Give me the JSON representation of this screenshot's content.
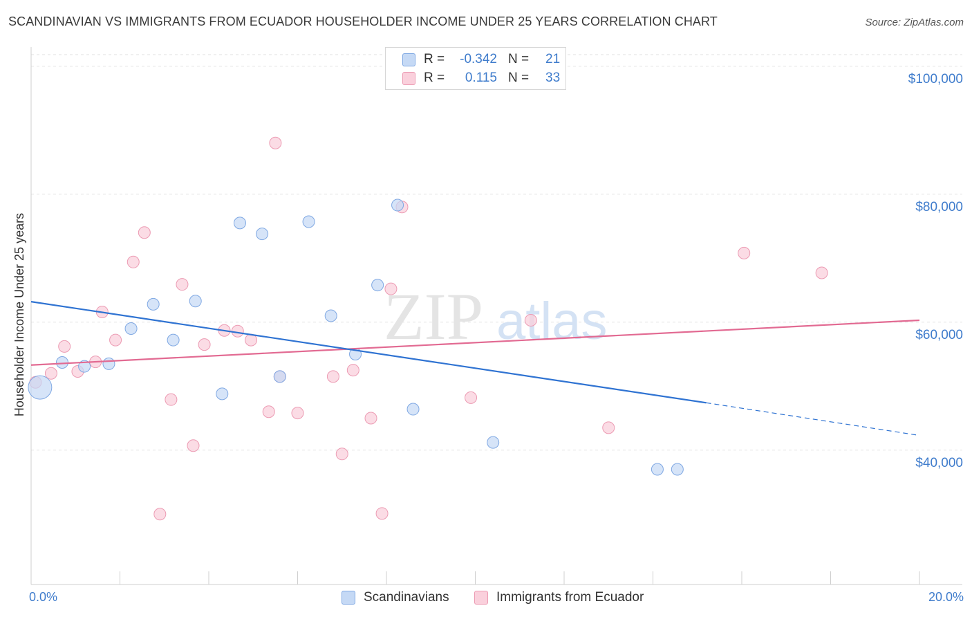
{
  "header": {
    "title": "SCANDINAVIAN VS IMMIGRANTS FROM ECUADOR HOUSEHOLDER INCOME UNDER 25 YEARS CORRELATION CHART",
    "source": "Source: ZipAtlas.com"
  },
  "watermark": {
    "zip": "ZIP",
    "atlas": "atlas"
  },
  "legend_top": [
    {
      "r_label": "R =",
      "r_value": "-0.342",
      "n_label": "N =",
      "n_value": "21"
    },
    {
      "r_label": "R =",
      "r_value": "0.115",
      "n_label": "N =",
      "n_value": "33"
    }
  ],
  "legend_bottom": [
    "Scandinavians",
    "Immigrants from Ecuador"
  ],
  "colors": {
    "scandinavians_fill": "#c5d9f5",
    "scandinavians_stroke": "#7fa8e3",
    "scandinavians_line": "#2f73d2",
    "ecuador_fill": "#fad0dc",
    "ecuador_stroke": "#ec9bb3",
    "ecuador_line": "#e26a92",
    "axis_text": "#3f7ccc"
  },
  "chart_data": {
    "type": "scatter",
    "title": "SCANDINAVIAN VS IMMIGRANTS FROM ECUADOR HOUSEHOLDER INCOME UNDER 25 YEARS CORRELATION CHART",
    "xlabel": "",
    "ylabel": "Householder Income Under 25 years",
    "xlim": [
      0,
      20
    ],
    "ylim": [
      19000,
      103000
    ],
    "x_tick_labels": [
      "0.0%",
      "20.0%"
    ],
    "y_ticks": [
      40000,
      60000,
      80000,
      100000
    ],
    "y_tick_labels": [
      "$40,000",
      "$60,000",
      "$80,000",
      "$100,000"
    ],
    "grid": true,
    "legend_position": "top-center",
    "series": [
      {
        "name": "Scandinavians",
        "r": -0.342,
        "n": 21,
        "trend": {
          "x0": 0,
          "y0": 63200,
          "x1": 15.2,
          "y1": 47400,
          "dash_to_x": 20,
          "dash_to_y": 42300
        },
        "points": [
          {
            "x": 0.2,
            "y": 49800,
            "size": "large"
          },
          {
            "x": 0.7,
            "y": 53700
          },
          {
            "x": 1.2,
            "y": 53100
          },
          {
            "x": 1.75,
            "y": 53500
          },
          {
            "x": 2.25,
            "y": 59000
          },
          {
            "x": 2.75,
            "y": 62800
          },
          {
            "x": 3.2,
            "y": 57200
          },
          {
            "x": 3.7,
            "y": 63300
          },
          {
            "x": 4.3,
            "y": 48800
          },
          {
            "x": 4.7,
            "y": 75500
          },
          {
            "x": 5.2,
            "y": 73800
          },
          {
            "x": 5.6,
            "y": 51500
          },
          {
            "x": 6.25,
            "y": 75700
          },
          {
            "x": 6.75,
            "y": 61000
          },
          {
            "x": 7.3,
            "y": 55000
          },
          {
            "x": 7.8,
            "y": 65800
          },
          {
            "x": 8.25,
            "y": 78300
          },
          {
            "x": 8.6,
            "y": 46400
          },
          {
            "x": 10.4,
            "y": 41200
          },
          {
            "x": 14.1,
            "y": 37000
          },
          {
            "x": 14.55,
            "y": 37000
          }
        ]
      },
      {
        "name": "Immigrants from Ecuador",
        "r": 0.115,
        "n": 33,
        "trend": {
          "x0": 0,
          "y0": 53300,
          "x1": 20,
          "y1": 60300
        },
        "points": [
          {
            "x": 0.1,
            "y": 50600
          },
          {
            "x": 0.45,
            "y": 52000
          },
          {
            "x": 0.75,
            "y": 56200
          },
          {
            "x": 1.05,
            "y": 52300
          },
          {
            "x": 1.45,
            "y": 53800
          },
          {
            "x": 1.6,
            "y": 61600
          },
          {
            "x": 1.9,
            "y": 57200
          },
          {
            "x": 2.3,
            "y": 69400
          },
          {
            "x": 2.55,
            "y": 74000
          },
          {
            "x": 2.9,
            "y": 30000
          },
          {
            "x": 3.15,
            "y": 47900
          },
          {
            "x": 3.4,
            "y": 65900
          },
          {
            "x": 3.65,
            "y": 40700
          },
          {
            "x": 3.9,
            "y": 56500
          },
          {
            "x": 4.35,
            "y": 58700
          },
          {
            "x": 4.65,
            "y": 58600
          },
          {
            "x": 4.95,
            "y": 57200
          },
          {
            "x": 5.35,
            "y": 46000
          },
          {
            "x": 5.6,
            "y": 51500
          },
          {
            "x": 5.5,
            "y": 88000
          },
          {
            "x": 6.0,
            "y": 45800
          },
          {
            "x": 6.8,
            "y": 51500
          },
          {
            "x": 7.0,
            "y": 39400
          },
          {
            "x": 7.25,
            "y": 52500
          },
          {
            "x": 7.65,
            "y": 45000
          },
          {
            "x": 7.9,
            "y": 30100
          },
          {
            "x": 8.1,
            "y": 65200
          },
          {
            "x": 8.35,
            "y": 78000
          },
          {
            "x": 9.9,
            "y": 48200
          },
          {
            "x": 11.25,
            "y": 60300
          },
          {
            "x": 13.0,
            "y": 43500
          },
          {
            "x": 16.05,
            "y": 70800
          },
          {
            "x": 17.8,
            "y": 67700
          }
        ]
      }
    ]
  }
}
